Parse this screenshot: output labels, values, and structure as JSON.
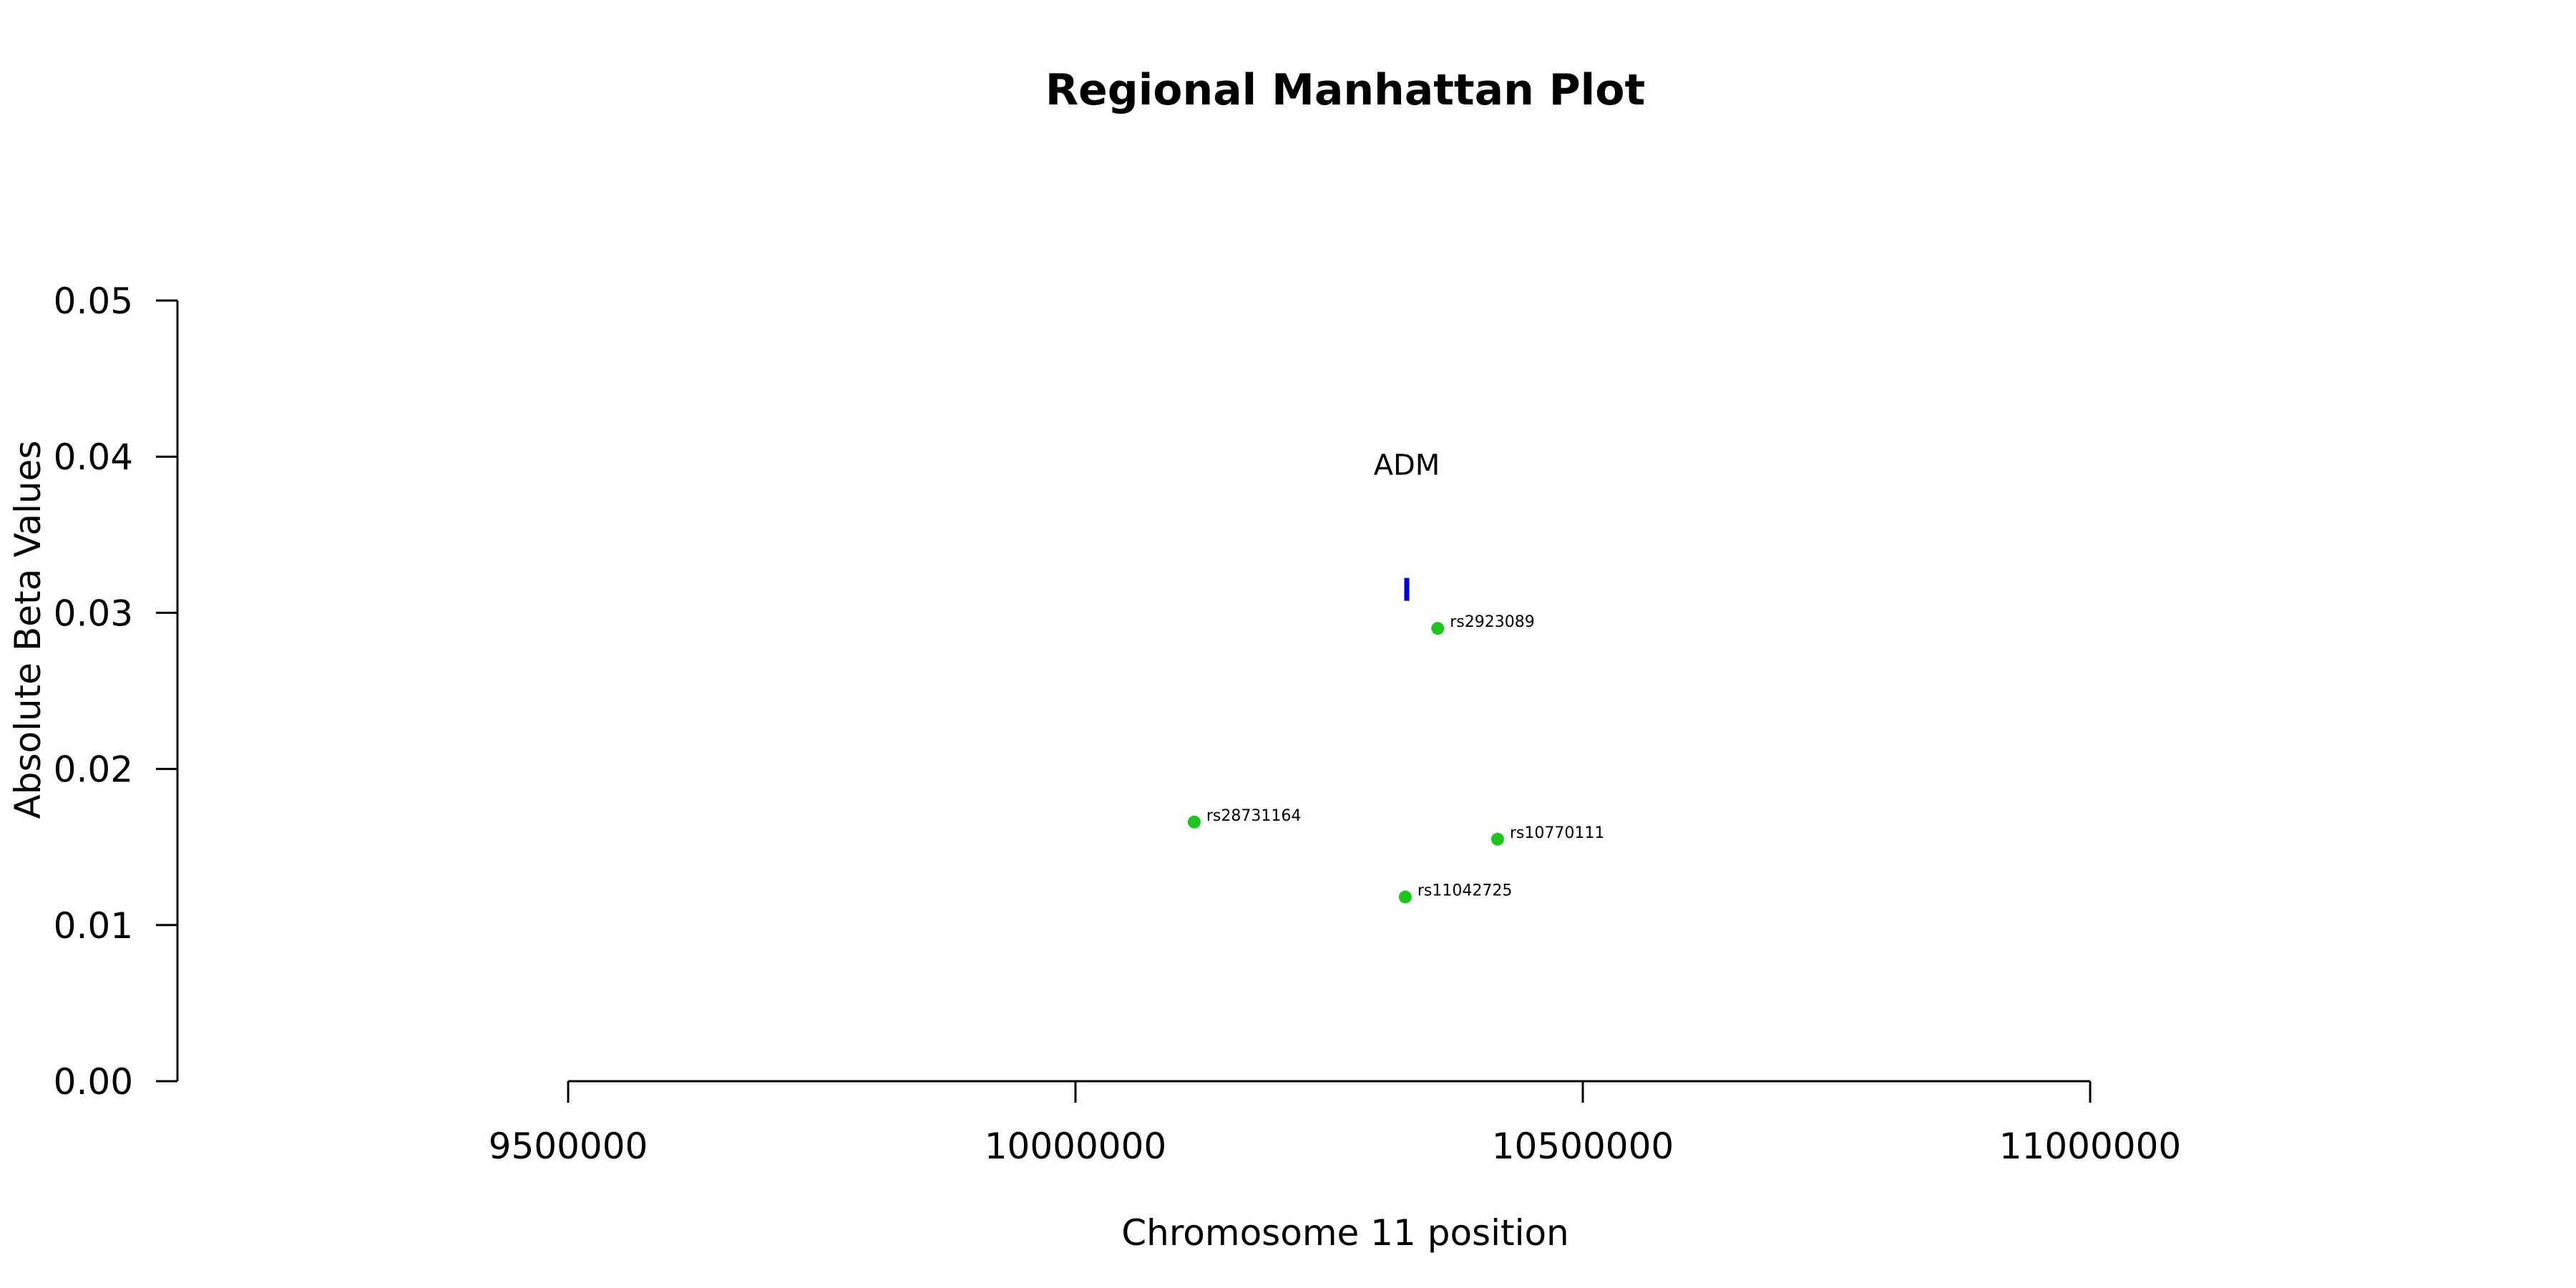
{
  "chart_data": {
    "type": "scatter",
    "title": "Regional Manhattan Plot",
    "xlabel": "Chromosome 11 position",
    "ylabel": "Absolute Beta Values",
    "xlim": [
      9500000,
      11000000
    ],
    "ylim": [
      0,
      0.05
    ],
    "x_ticks": [
      9500000,
      10000000,
      10500000,
      11000000
    ],
    "y_ticks": [
      0.0,
      0.01,
      0.02,
      0.03,
      0.04,
      0.05
    ],
    "x_tick_labels": [
      "9500000",
      "10000000",
      "10500000",
      "11000000"
    ],
    "y_tick_labels": [
      "0.00",
      "0.01",
      "0.02",
      "0.03",
      "0.04",
      "0.05"
    ],
    "grid": false,
    "point_color": "#1ec31e",
    "points": [
      {
        "label": "rs28731164",
        "x": 10117000,
        "y": 0.0166
      },
      {
        "label": "rs2923089",
        "x": 10357000,
        "y": 0.029
      },
      {
        "label": "rs10770111",
        "x": 10416000,
        "y": 0.0155
      },
      {
        "label": "rs11042725",
        "x": 10325000,
        "y": 0.0118
      }
    ],
    "gene": {
      "name": "ADM",
      "start": 10325000,
      "end": 10328000,
      "y": 0.0315,
      "color": "#0000dd"
    }
  }
}
